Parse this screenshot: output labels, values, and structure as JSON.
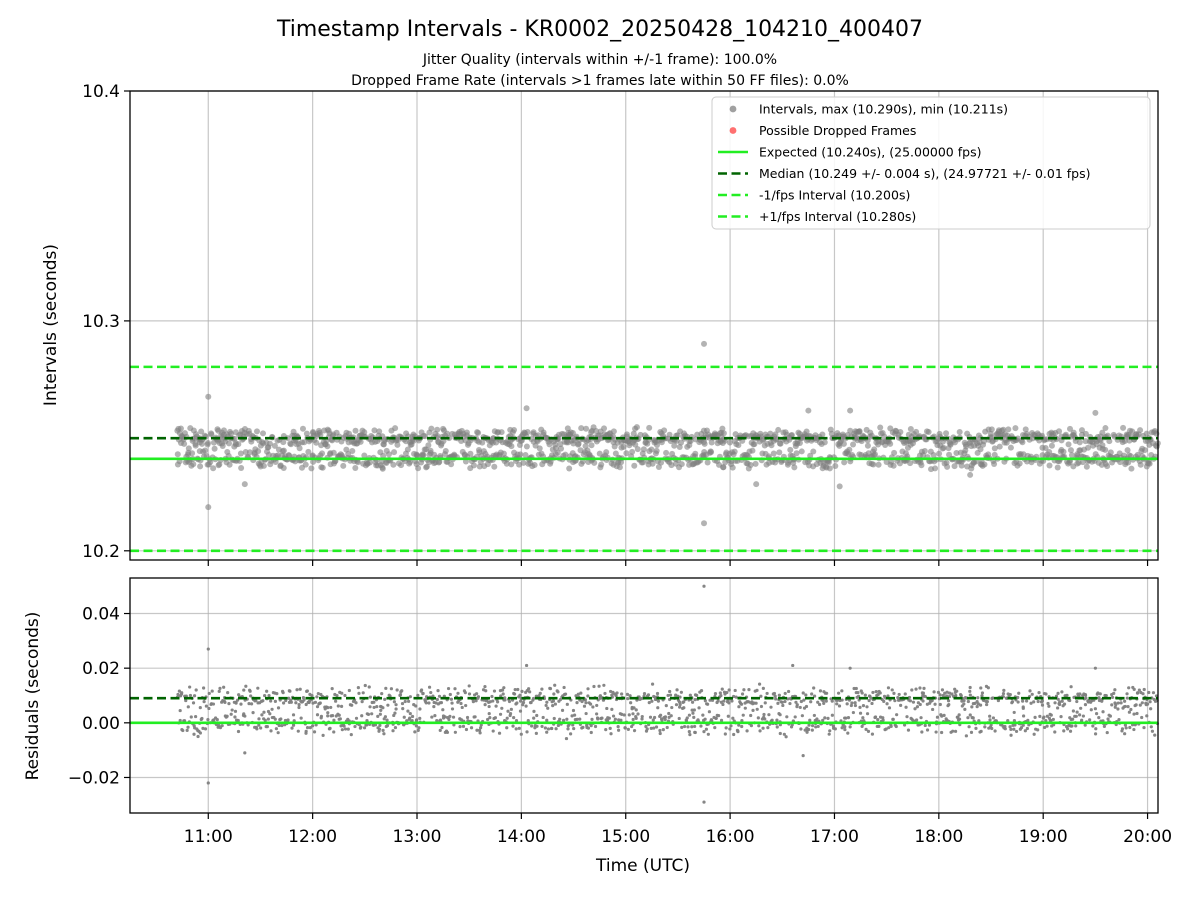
{
  "header": {
    "title": "Timestamp Intervals - KR0002_20250428_104210_400407",
    "subtitle_1": "Jitter Quality (intervals within +/-1 frame): 100.0%",
    "subtitle_2": "Dropped Frame Rate (intervals >1 frames late within 50 FF files): 0.0%"
  },
  "colors": {
    "points": "#808080",
    "dropped": "#ff4040",
    "expected": "#22ee22",
    "median": "#006400",
    "fps_bounds": "#22ee22",
    "grid": "#b0b0b0"
  },
  "chart_data": [
    {
      "type": "scatter",
      "panel": "intervals",
      "xlabel": "",
      "ylabel": "Intervals (seconds)",
      "x_unit": "hours UTC",
      "xlim": [
        10.25,
        20.1
      ],
      "ylim": [
        10.196,
        10.4
      ],
      "y_ticks": [
        10.2,
        10.3,
        10.4
      ],
      "y_tick_labels": [
        "10.2",
        "10.3",
        "10.4"
      ],
      "x_ticks": [
        11,
        12,
        13,
        14,
        15,
        16,
        17,
        18,
        19,
        20
      ],
      "grid": true,
      "legend_position": "top-right",
      "series": [
        {
          "name": "Intervals, max (10.290s), min (10.211s)",
          "kind": "points",
          "x_range": [
            10.7,
            20.1
          ],
          "upper_band": 10.249,
          "lower_band": 10.24,
          "outliers": [
            [
              11.0,
              10.267
            ],
            [
              11.0,
              10.219
            ],
            [
              15.75,
              10.29
            ],
            [
              15.75,
              10.212
            ],
            [
              14.05,
              10.262
            ],
            [
              16.75,
              10.261
            ],
            [
              17.15,
              10.261
            ],
            [
              19.5,
              10.26
            ],
            [
              11.35,
              10.229
            ],
            [
              17.05,
              10.228
            ],
            [
              16.25,
              10.229
            ],
            [
              18.3,
              10.233
            ]
          ]
        },
        {
          "name": "Possible Dropped Frames",
          "kind": "points",
          "points": []
        },
        {
          "name": "Expected (10.240s), (25.00000 fps)",
          "kind": "hline",
          "value": 10.24,
          "style": "solid"
        },
        {
          "name": "Median (10.249 +/- 0.004 s), (24.97721 +/- 0.01 fps)",
          "kind": "hline",
          "value": 10.249,
          "style": "dashed"
        },
        {
          "name": "-1/fps Interval (10.200s)",
          "kind": "hline",
          "value": 10.2,
          "style": "dashed"
        },
        {
          "name": "+1/fps Interval (10.280s)",
          "kind": "hline",
          "value": 10.28,
          "style": "dashed"
        }
      ]
    },
    {
      "type": "scatter",
      "panel": "residuals",
      "xlabel": "Time (UTC)",
      "ylabel": "Residuals (seconds)",
      "x_unit": "hours UTC",
      "xlim": [
        10.25,
        20.1
      ],
      "ylim": [
        -0.033,
        0.053
      ],
      "y_ticks": [
        -0.02,
        0.0,
        0.02,
        0.04
      ],
      "y_tick_labels": [
        "−0.02",
        "0.00",
        "0.02",
        "0.04"
      ],
      "x_ticks": [
        11,
        12,
        13,
        14,
        15,
        16,
        17,
        18,
        19,
        20
      ],
      "x_tick_labels": [
        "11:00",
        "12:00",
        "13:00",
        "14:00",
        "15:00",
        "16:00",
        "17:00",
        "18:00",
        "19:00",
        "20:00"
      ],
      "grid": true,
      "series": [
        {
          "kind": "points",
          "x_range": [
            10.7,
            20.1
          ],
          "upper_band": 0.009,
          "lower_band": 0.0,
          "outliers": [
            [
              11.0,
              0.027
            ],
            [
              11.0,
              -0.022
            ],
            [
              15.75,
              0.05
            ],
            [
              15.75,
              -0.029
            ],
            [
              14.05,
              0.021
            ],
            [
              16.6,
              0.021
            ],
            [
              17.15,
              0.02
            ],
            [
              19.5,
              0.02
            ],
            [
              11.35,
              -0.011
            ],
            [
              16.7,
              -0.012
            ]
          ]
        },
        {
          "kind": "hline",
          "value": 0.0,
          "style": "solid"
        },
        {
          "kind": "hline",
          "value": 0.009,
          "style": "dashed"
        }
      ]
    }
  ]
}
